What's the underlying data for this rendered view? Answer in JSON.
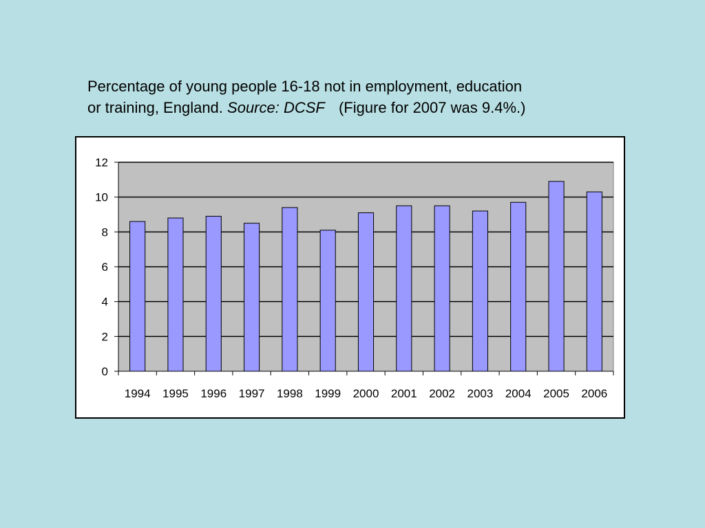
{
  "caption": {
    "line1": "Percentage of young people 16-18 not in employment, education",
    "line2_prefix": "or training, England.",
    "source": "Source: DCSF",
    "note": "(Figure for 2007 was 9.4%.)"
  },
  "colors": {
    "background": "#b8dfe3",
    "plot_area": "#c0c0c0",
    "bar_fill": "#9999ff",
    "bar_stroke": "#000000"
  },
  "chart_data": {
    "type": "bar",
    "title": "",
    "xlabel": "",
    "ylabel": "",
    "categories": [
      "1994",
      "1995",
      "1996",
      "1997",
      "1998",
      "1999",
      "2000",
      "2001",
      "2002",
      "2003",
      "2004",
      "2005",
      "2006"
    ],
    "values": [
      8.6,
      8.8,
      8.9,
      8.5,
      9.4,
      8.1,
      9.1,
      9.5,
      9.5,
      9.2,
      9.7,
      10.9,
      10.3
    ],
    "ylim": [
      0,
      12
    ],
    "yticks": [
      0,
      2,
      4,
      6,
      8,
      10,
      12
    ],
    "grid": true,
    "legend": "none"
  }
}
